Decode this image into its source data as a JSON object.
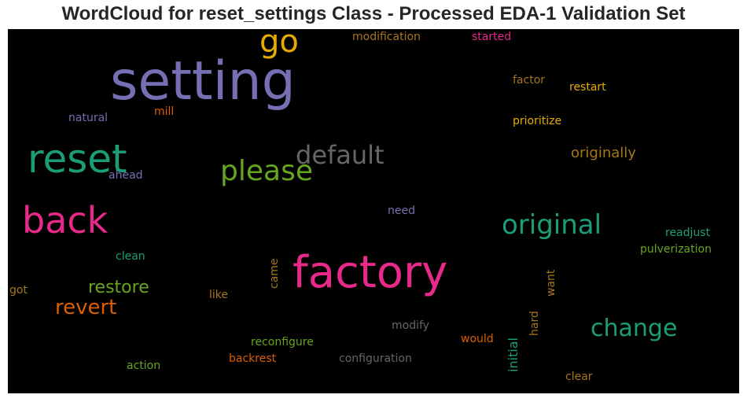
{
  "title": "WordCloud for reset_settings Class - Processed EDA-1 Validation Set",
  "words": [
    {
      "text": "setting",
      "color": "#7570b3",
      "vertical": false
    },
    {
      "text": "go",
      "color": "#e6ab02",
      "vertical": false
    },
    {
      "text": "modification",
      "color": "#a6761d",
      "vertical": false
    },
    {
      "text": "started",
      "color": "#e7298a",
      "vertical": false
    },
    {
      "text": "factor",
      "color": "#a6761d",
      "vertical": false
    },
    {
      "text": "restart",
      "color": "#e6ab02",
      "vertical": false
    },
    {
      "text": "natural",
      "color": "#7570b3",
      "vertical": false
    },
    {
      "text": "mill",
      "color": "#d95f02",
      "vertical": false
    },
    {
      "text": "prioritize",
      "color": "#e6ab02",
      "vertical": false
    },
    {
      "text": "reset",
      "color": "#1b9e77",
      "vertical": false
    },
    {
      "text": "default",
      "color": "#666666",
      "vertical": false
    },
    {
      "text": "please",
      "color": "#66a61e",
      "vertical": false
    },
    {
      "text": "originally",
      "color": "#a6761d",
      "vertical": false
    },
    {
      "text": "ahead",
      "color": "#7570b3",
      "vertical": false
    },
    {
      "text": "back",
      "color": "#e7298a",
      "vertical": false
    },
    {
      "text": "need",
      "color": "#7570b3",
      "vertical": false
    },
    {
      "text": "original",
      "color": "#1b9e77",
      "vertical": false
    },
    {
      "text": "readjust",
      "color": "#1b9e77",
      "vertical": false
    },
    {
      "text": "pulverization",
      "color": "#66a61e",
      "vertical": false
    },
    {
      "text": "clean",
      "color": "#1b9e77",
      "vertical": false
    },
    {
      "text": "factory",
      "color": "#e7298a",
      "vertical": false
    },
    {
      "text": "came",
      "color": "#a6761d",
      "vertical": true
    },
    {
      "text": "want",
      "color": "#a6761d",
      "vertical": true
    },
    {
      "text": "restore",
      "color": "#66a61e",
      "vertical": false
    },
    {
      "text": "got",
      "color": "#a6761d",
      "vertical": false
    },
    {
      "text": "revert",
      "color": "#d95f02",
      "vertical": false
    },
    {
      "text": "like",
      "color": "#a6761d",
      "vertical": false
    },
    {
      "text": "modify",
      "color": "#666666",
      "vertical": false
    },
    {
      "text": "initial",
      "color": "#1b9e77",
      "vertical": true
    },
    {
      "text": "hard",
      "color": "#a6761d",
      "vertical": true
    },
    {
      "text": "change",
      "color": "#1b9e77",
      "vertical": false
    },
    {
      "text": "reconfigure",
      "color": "#66a61e",
      "vertical": false
    },
    {
      "text": "would",
      "color": "#d95f02",
      "vertical": false
    },
    {
      "text": "action",
      "color": "#66a61e",
      "vertical": false
    },
    {
      "text": "backrest",
      "color": "#d95f02",
      "vertical": false
    },
    {
      "text": "configuration",
      "color": "#666666",
      "vertical": false
    },
    {
      "text": "clear",
      "color": "#a6761d",
      "vertical": false
    }
  ]
}
